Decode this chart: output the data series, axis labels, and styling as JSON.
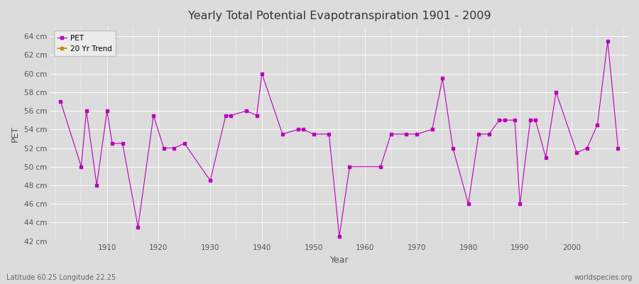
{
  "title": "Yearly Total Potential Evapotranspiration 1901 - 2009",
  "xlabel": "Year",
  "ylabel": "PET",
  "footer_left": "Latitude 60.25 Longitude 22.25",
  "footer_right": "worldspecies.org",
  "legend_entries": [
    "PET",
    "20 Yr Trend"
  ],
  "legend_colors": [
    "#bb00bb",
    "#cc8800"
  ],
  "line_color": "#bb00bb",
  "trend_color": "#cc8800",
  "bg_color": "#dcdcdc",
  "ylim": [
    42,
    65
  ],
  "xlim": [
    1899,
    2011
  ],
  "years": [
    1901,
    1905,
    1906,
    1908,
    1910,
    1911,
    1913,
    1916,
    1919,
    1921,
    1923,
    1925,
    1930,
    1933,
    1934,
    1937,
    1939,
    1940,
    1944,
    1947,
    1948,
    1950,
    1953,
    1955,
    1957,
    1963,
    1965,
    1968,
    1970,
    1973,
    1975,
    1977,
    1980,
    1982,
    1984,
    1986,
    1987,
    1989,
    1990,
    1992,
    1993,
    1995,
    1997,
    2001,
    2003,
    2005,
    2007,
    2009
  ],
  "pet": [
    57.0,
    50.0,
    56.0,
    48.0,
    56.0,
    52.5,
    52.5,
    43.5,
    55.5,
    52.0,
    52.0,
    52.5,
    48.5,
    55.5,
    55.5,
    56.0,
    55.5,
    60.0,
    53.5,
    54.0,
    54.0,
    53.5,
    53.5,
    42.5,
    50.0,
    50.0,
    53.5,
    53.5,
    53.5,
    54.0,
    59.5,
    52.0,
    46.0,
    53.5,
    53.5,
    55.0,
    55.0,
    55.0,
    46.0,
    55.0,
    55.0,
    51.0,
    58.0,
    51.5,
    52.0,
    54.5,
    63.5,
    52.0
  ],
  "xticks": [
    1910,
    1920,
    1930,
    1940,
    1950,
    1960,
    1970,
    1980,
    1990,
    2000
  ],
  "yticks": [
    42,
    44,
    46,
    48,
    50,
    52,
    54,
    56,
    58,
    60,
    62,
    64
  ]
}
